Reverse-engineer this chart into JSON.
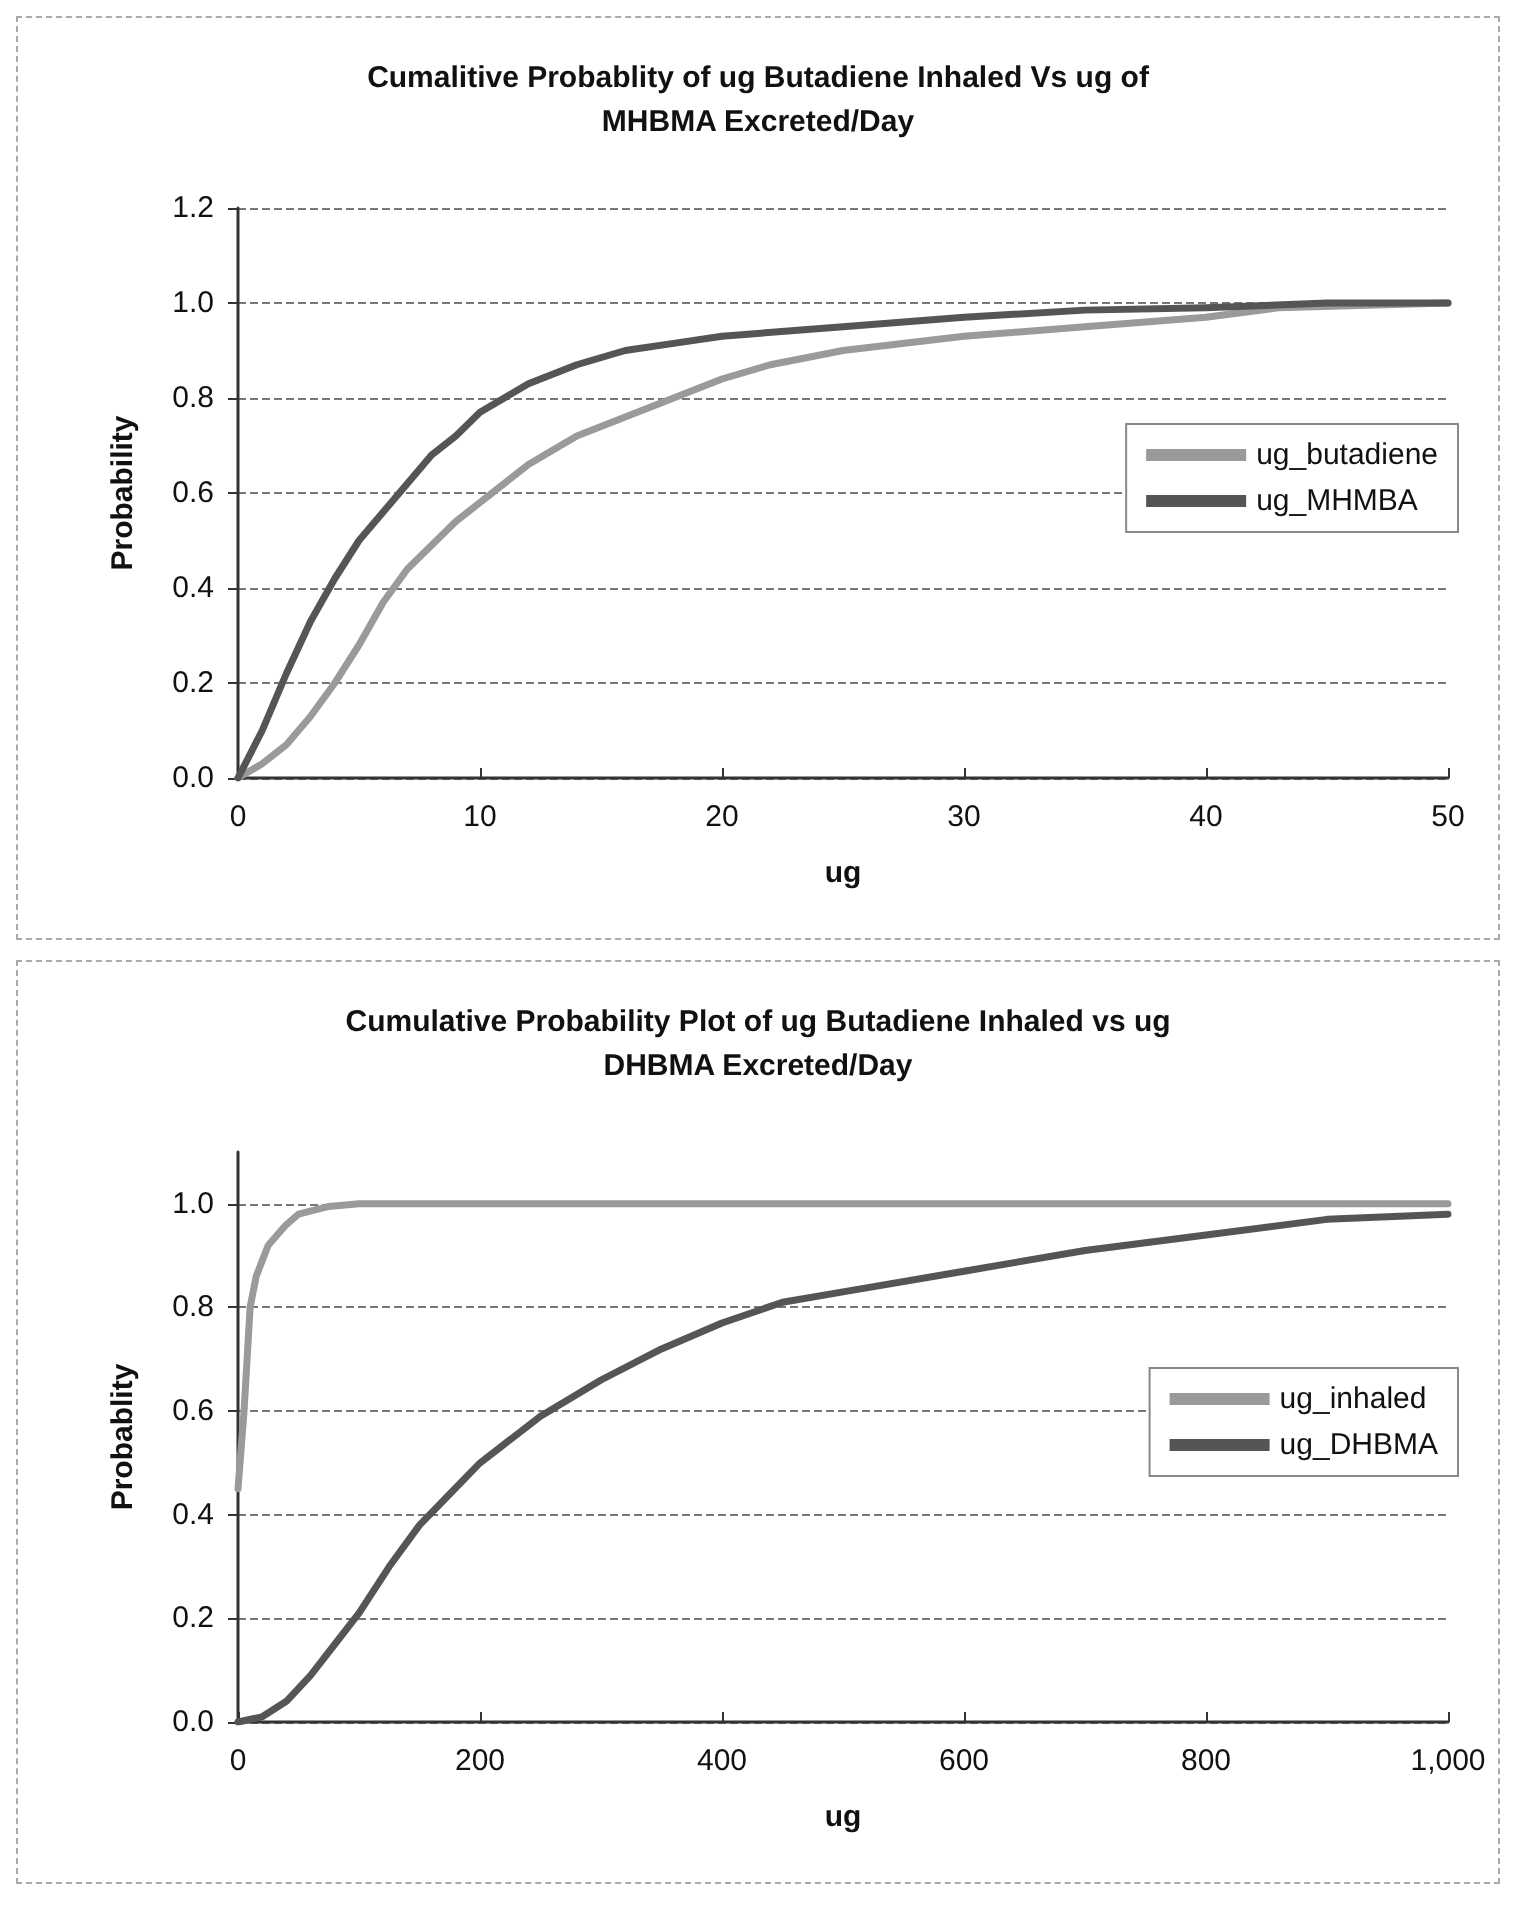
{
  "chart_data": [
    {
      "type": "line",
      "title": "Cumalitive Probablity of ug Butadiene Inhaled Vs ug of MHBMA Excreted/Day",
      "xlabel": "ug",
      "ylabel": "Probability",
      "xlim": [
        0,
        50
      ],
      "xticks": [
        0,
        10,
        20,
        30,
        40,
        50
      ],
      "ylim": [
        0,
        1.2
      ],
      "yticks": [
        {
          "value": 0,
          "label": "0.0"
        },
        {
          "value": 0.2,
          "label": "0.2"
        },
        {
          "value": 0.4,
          "label": "0.4"
        },
        {
          "value": 0.6,
          "label": "0.6"
        },
        {
          "value": 0.8,
          "label": "0.8"
        },
        {
          "value": 1,
          "label": "1.0"
        },
        {
          "value": 1.2,
          "label": "1.2"
        }
      ],
      "grid": "y",
      "legend": "right",
      "marker": "none",
      "line_style": "solid",
      "series": [
        {
          "name": "ug_butadiene",
          "color": "#9a9a9a",
          "x": [
            0,
            1,
            2,
            3,
            4,
            5,
            6,
            7,
            8,
            9,
            10,
            12,
            14,
            16,
            18,
            20,
            22,
            25,
            30,
            35,
            40,
            43,
            50
          ],
          "values": [
            0,
            0.03,
            0.07,
            0.13,
            0.2,
            0.28,
            0.37,
            0.44,
            0.49,
            0.54,
            0.58,
            0.66,
            0.72,
            0.76,
            0.8,
            0.84,
            0.87,
            0.9,
            0.93,
            0.95,
            0.97,
            0.99,
            1.0
          ]
        },
        {
          "name": "ug_MHMBA",
          "color": "#555555",
          "x": [
            0,
            1,
            2,
            3,
            4,
            5,
            6,
            7,
            8,
            9,
            10,
            12,
            14,
            16,
            18,
            20,
            25,
            30,
            35,
            40,
            45,
            50
          ],
          "values": [
            0,
            0.1,
            0.22,
            0.33,
            0.42,
            0.5,
            0.56,
            0.62,
            0.68,
            0.72,
            0.77,
            0.83,
            0.87,
            0.9,
            0.915,
            0.93,
            0.95,
            0.97,
            0.985,
            0.99,
            1.0,
            1.0
          ]
        }
      ]
    },
    {
      "type": "line",
      "title": "Cumulative Probability Plot of ug Butadiene Inhaled vs ug DHBMA Excreted/Day",
      "xlabel": "ug",
      "ylabel": "Probablity",
      "xlim": [
        0,
        1000
      ],
      "xticks": [
        0,
        200,
        400,
        600,
        800,
        {
          "value": 1000,
          "label": "1,000"
        }
      ],
      "ylim": [
        0,
        1.1
      ],
      "yticks": [
        {
          "value": 0,
          "label": "0.0"
        },
        {
          "value": 0.2,
          "label": "0.2"
        },
        {
          "value": 0.4,
          "label": "0.4"
        },
        {
          "value": 0.6,
          "label": "0.6"
        },
        {
          "value": 0.8,
          "label": "0.8"
        },
        {
          "value": 1,
          "label": "1.0"
        }
      ],
      "grid": "y",
      "legend": "right",
      "marker": "none",
      "line_style": "solid",
      "series": [
        {
          "name": "ug_inhaled",
          "color": "#9a9a9a",
          "x": [
            0,
            5,
            10,
            15,
            25,
            40,
            50,
            75,
            100,
            1000
          ],
          "values": [
            0.45,
            0.6,
            0.8,
            0.86,
            0.92,
            0.96,
            0.98,
            0.995,
            1.0,
            1.0
          ]
        },
        {
          "name": "ug_DHBMA",
          "color": "#555555",
          "x": [
            0,
            20,
            40,
            60,
            80,
            100,
            125,
            150,
            175,
            200,
            250,
            300,
            350,
            400,
            450,
            500,
            600,
            700,
            800,
            900,
            1000
          ],
          "values": [
            0,
            0.01,
            0.04,
            0.09,
            0.15,
            0.21,
            0.3,
            0.38,
            0.44,
            0.5,
            0.59,
            0.66,
            0.72,
            0.77,
            0.81,
            0.83,
            0.87,
            0.91,
            0.94,
            0.97,
            0.98
          ]
        }
      ]
    }
  ]
}
